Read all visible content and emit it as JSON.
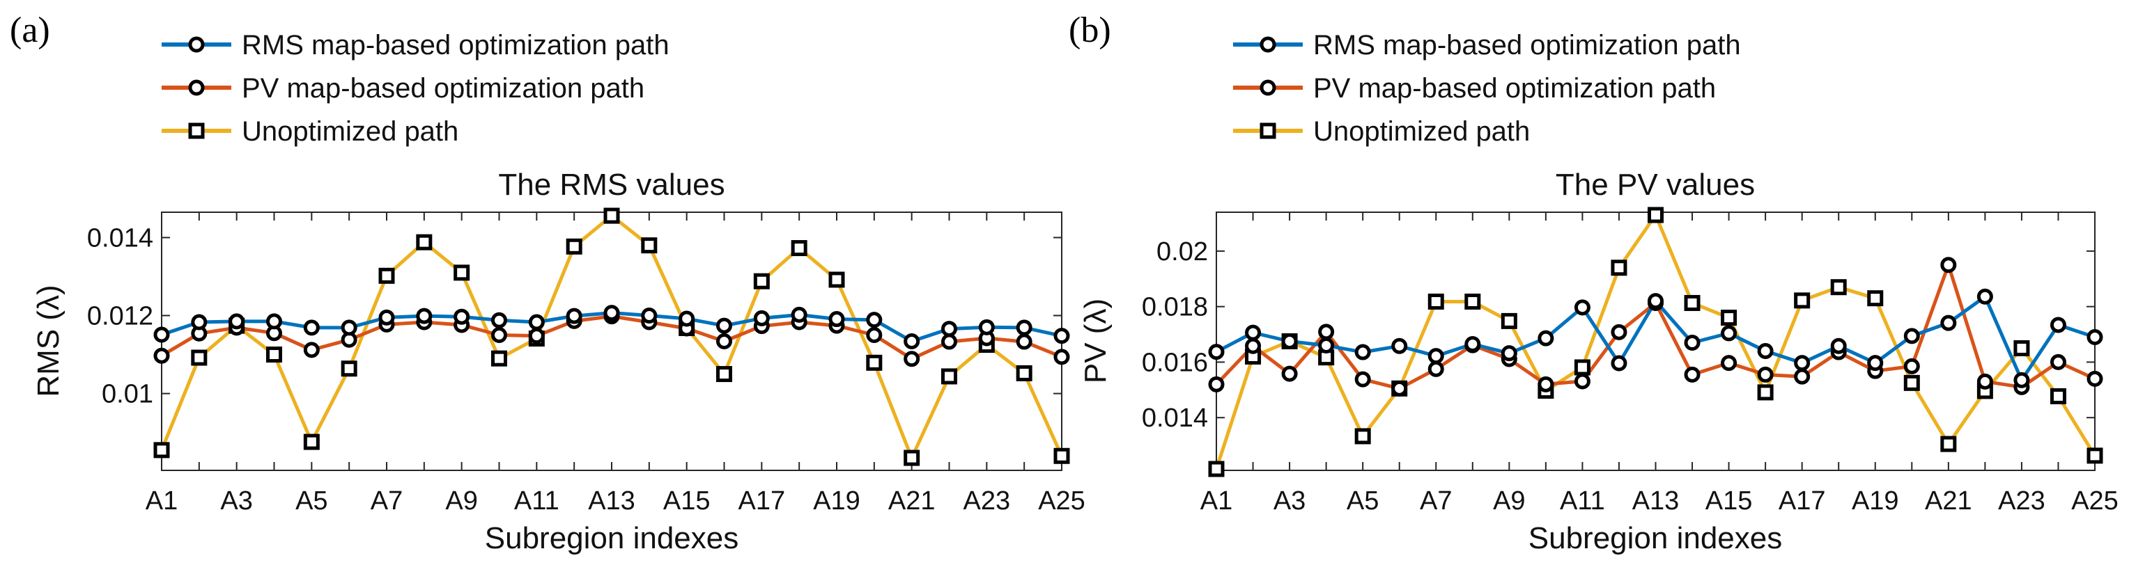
{
  "chart_data": [
    {
      "type": "line",
      "panel_label": "(a)",
      "title": "The RMS values",
      "xlabel": "Subregion indexes",
      "ylabel": "RMS (λ)",
      "categories": [
        "A1",
        "A2",
        "A3",
        "A4",
        "A5",
        "A6",
        "A7",
        "A8",
        "A9",
        "A10",
        "A11",
        "A12",
        "A13",
        "A14",
        "A15",
        "A16",
        "A17",
        "A18",
        "A19",
        "A20",
        "A21",
        "A22",
        "A23",
        "A24",
        "A25"
      ],
      "x_tick_labels": [
        "A1",
        "A3",
        "A5",
        "A7",
        "A9",
        "A11",
        "A13",
        "A15",
        "A17",
        "A19",
        "A21",
        "A23",
        "A25"
      ],
      "ylim": [
        0.00803,
        0.01465
      ],
      "yticks": [
        0.01,
        0.012,
        0.014
      ],
      "ytick_labels": [
        "0.01",
        "0.012",
        "0.014"
      ],
      "legend_position": "top-left",
      "series": [
        {
          "name": "RMS map-based optimization path",
          "color": "#0072BD",
          "marker": "circle",
          "values": [
            0.01151,
            0.01183,
            0.01185,
            0.01185,
            0.01169,
            0.01169,
            0.01195,
            0.01199,
            0.01197,
            0.01188,
            0.01183,
            0.01199,
            0.01207,
            0.012,
            0.01192,
            0.01174,
            0.01193,
            0.01202,
            0.01191,
            0.01189,
            0.01134,
            0.01166,
            0.0117,
            0.01169,
            0.01148
          ]
        },
        {
          "name": "PV map-based optimization path",
          "color": "#D95319",
          "marker": "circle",
          "values": [
            0.01097,
            0.01154,
            0.01169,
            0.01155,
            0.01112,
            0.01138,
            0.01177,
            0.01183,
            0.01176,
            0.0115,
            0.01148,
            0.01186,
            0.01198,
            0.01183,
            0.01167,
            0.01134,
            0.01173,
            0.01183,
            0.01174,
            0.0115,
            0.01089,
            0.01133,
            0.01142,
            0.01133,
            0.01094
          ]
        },
        {
          "name": "Unoptimized path",
          "color": "#EDB120",
          "marker": "square",
          "values": [
            0.00855,
            0.01092,
            0.01174,
            0.011,
            0.00876,
            0.01064,
            0.01302,
            0.01388,
            0.0131,
            0.0109,
            0.01141,
            0.01377,
            0.01456,
            0.0138,
            0.01168,
            0.0105,
            0.01288,
            0.01373,
            0.01292,
            0.01079,
            0.00835,
            0.01044,
            0.01125,
            0.01052,
            0.0084
          ]
        }
      ]
    },
    {
      "type": "line",
      "panel_label": "(b)",
      "title": "The PV values",
      "xlabel": "Subregion indexes",
      "ylabel": "PV (λ)",
      "categories": [
        "A1",
        "A2",
        "A3",
        "A4",
        "A5",
        "A6",
        "A7",
        "A8",
        "A9",
        "A10",
        "A11",
        "A12",
        "A13",
        "A14",
        "A15",
        "A16",
        "A17",
        "A18",
        "A19",
        "A20",
        "A21",
        "A22",
        "A23",
        "A24",
        "A25"
      ],
      "x_tick_labels": [
        "A1",
        "A3",
        "A5",
        "A7",
        "A9",
        "A11",
        "A13",
        "A15",
        "A17",
        "A19",
        "A21",
        "A23",
        "A25"
      ],
      "ylim": [
        0.0121,
        0.0214
      ],
      "yticks": [
        0.014,
        0.016,
        0.018,
        0.02
      ],
      "ytick_labels": [
        "0.014",
        "0.016",
        "0.018",
        "0.02"
      ],
      "legend_position": "top-left",
      "series": [
        {
          "name": "RMS map-based optimization path",
          "color": "#0072BD",
          "marker": "circle",
          "values": [
            0.01637,
            0.01706,
            0.01675,
            0.0166,
            0.01636,
            0.01658,
            0.01622,
            0.01665,
            0.01632,
            0.01686,
            0.01797,
            0.01596,
            0.0182,
            0.0167,
            0.01704,
            0.0164,
            0.01597,
            0.01658,
            0.01597,
            0.01694,
            0.01741,
            0.01836,
            0.01535,
            0.01734,
            0.0169
          ]
        },
        {
          "name": "PV map-based optimization path",
          "color": "#D95319",
          "marker": "circle",
          "values": [
            0.0152,
            0.01658,
            0.01558,
            0.01709,
            0.01538,
            0.01505,
            0.01575,
            0.01661,
            0.01611,
            0.0152,
            0.01531,
            0.01708,
            0.01813,
            0.01555,
            0.01597,
            0.01555,
            0.01548,
            0.01636,
            0.01568,
            0.01585,
            0.0195,
            0.0153,
            0.0151,
            0.016,
            0.0154
          ]
        },
        {
          "name": "Unoptimized path",
          "color": "#EDB120",
          "marker": "square",
          "values": [
            0.01215,
            0.0162,
            0.01675,
            0.01617,
            0.01333,
            0.01505,
            0.01818,
            0.01818,
            0.01748,
            0.01497,
            0.01581,
            0.0194,
            0.0213,
            0.01813,
            0.0176,
            0.01491,
            0.01822,
            0.0187,
            0.0183,
            0.01525,
            0.01305,
            0.01496,
            0.0165,
            0.01477,
            0.01263
          ]
        }
      ]
    }
  ]
}
